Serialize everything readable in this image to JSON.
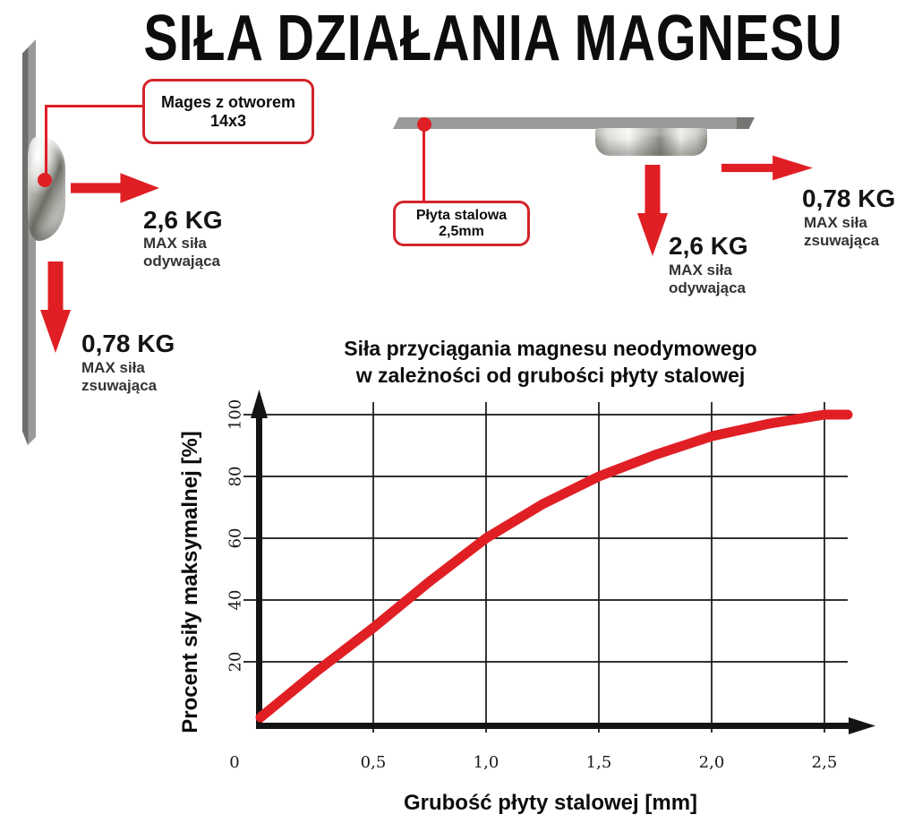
{
  "title": "SIŁA DZIAŁANIA MAGNESU",
  "left_diagram": {
    "callout_label": "Mages z otworem 14x3",
    "pull_value": "2,6 KG",
    "pull_caption_line1": "MAX siła",
    "pull_caption_line2": "odywająca",
    "slide_value": "0,78 KG",
    "slide_caption_line1": "MAX siła",
    "slide_caption_line2": "zsuwająca"
  },
  "right_diagram": {
    "callout_label": "Płyta stalowa 2,5mm",
    "pull_value": "2,6 KG",
    "pull_caption_line1": "MAX siła",
    "pull_caption_line2": "odywająca",
    "slide_value": "0,78 KG",
    "slide_caption_line1": "MAX siła",
    "slide_caption_line2": "zsuwająca"
  },
  "chart": {
    "title_line1": "Siła przyciągania magnesu neodymowego",
    "title_line2": "w zależności od grubości płyty stalowej",
    "ylabel": "Procent siły maksymalnej [%]",
    "xlabel": "Grubość płyty stalowej [mm]"
  },
  "chart_data": {
    "type": "line",
    "title": "Siła przyciągania magnesu neodymowego w zależności od grubości płyty stalowej",
    "xlabel": "Grubość płyty stalowej [mm]",
    "ylabel": "Procent siły maksymalnej [%]",
    "x": [
      0,
      0.25,
      0.5,
      0.75,
      1.0,
      1.25,
      1.5,
      1.75,
      2.0,
      2.25,
      2.5
    ],
    "values": [
      2,
      17,
      31,
      46,
      60,
      71,
      80,
      87,
      93,
      97,
      100
    ],
    "xlim": [
      0,
      2.6
    ],
    "ylim": [
      0,
      105
    ],
    "xticks": [
      {
        "value": 0,
        "label": "0"
      },
      {
        "value": 0.5,
        "label": "0,5"
      },
      {
        "value": 1.0,
        "label": "1,0"
      },
      {
        "value": 1.5,
        "label": "1,5"
      },
      {
        "value": 2.0,
        "label": "2,0"
      },
      {
        "value": 2.5,
        "label": "2,5"
      }
    ],
    "yticks": [
      {
        "value": 20,
        "label": "20"
      },
      {
        "value": 40,
        "label": "40"
      },
      {
        "value": 60,
        "label": "60"
      },
      {
        "value": 80,
        "label": "80"
      },
      {
        "value": 100,
        "label": "100"
      }
    ],
    "grid": true,
    "legend": false,
    "line_color": "#e01f25",
    "axis_color": "#141414"
  },
  "colors": {
    "accent_red": "#e01f25",
    "callout_border_red": "#d2242a",
    "steel_gray": "#9a9a98",
    "text_black": "#111111"
  }
}
